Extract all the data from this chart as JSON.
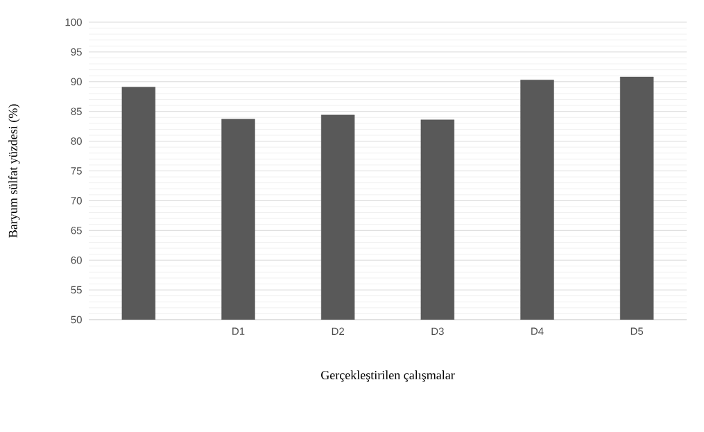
{
  "chart_data": {
    "type": "bar",
    "xlabel": "Gerçekleştirilen çalışmalar",
    "ylabel": "Baryum sülfat yüzdesi (%)",
    "categories": [
      null,
      "D1",
      "D2",
      "D3",
      "D4",
      "D5"
    ],
    "values": [
      89.1,
      83.7,
      84.4,
      83.6,
      90.3,
      90.8
    ],
    "color": "#595959",
    "ylim": [
      50,
      100
    ],
    "yticks": [
      50,
      55,
      60,
      65,
      70,
      75,
      80,
      85,
      90,
      95,
      100
    ],
    "grid": "y"
  }
}
